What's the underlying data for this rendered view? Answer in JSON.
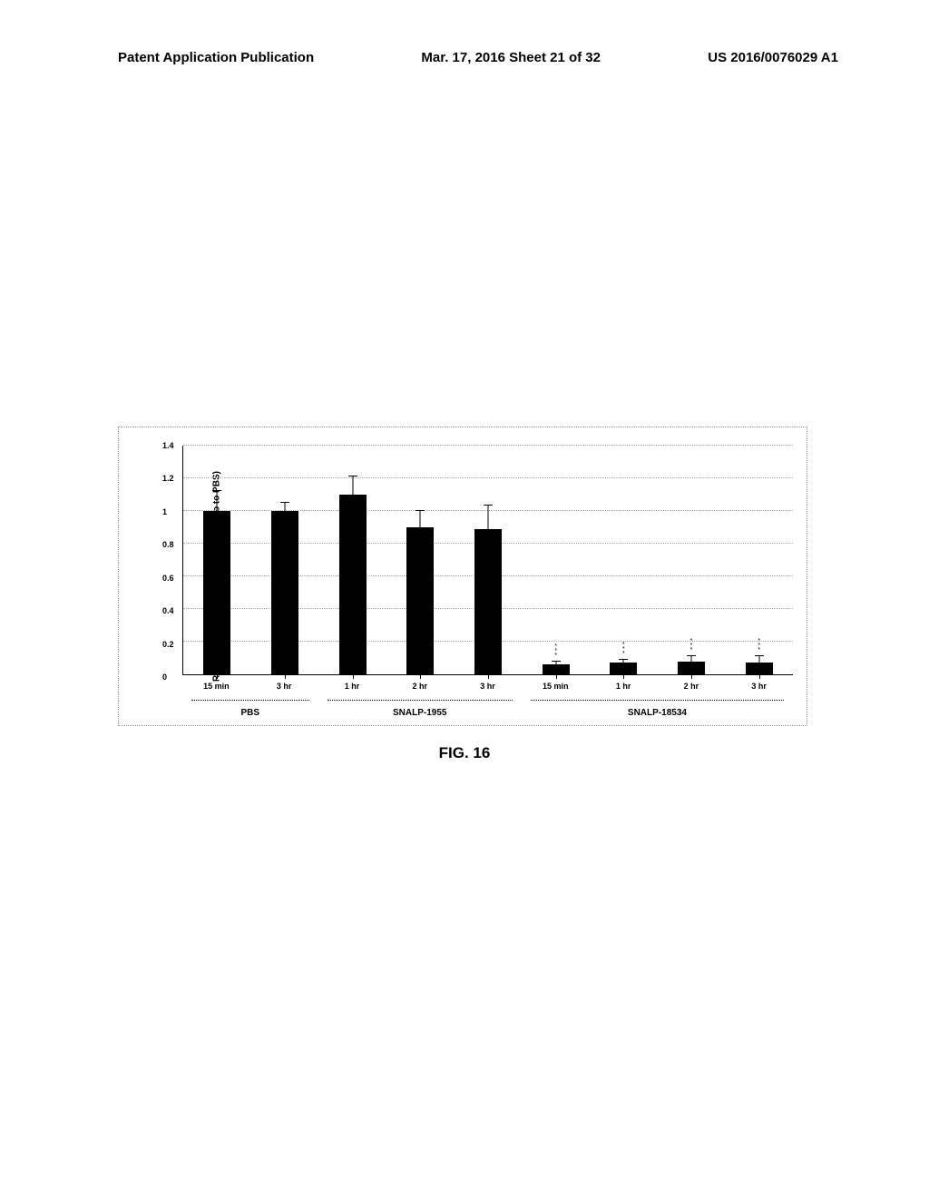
{
  "header": {
    "left": "Patent Application Publication",
    "center": "Mar. 17, 2016  Sheet 21 of 32",
    "right": "US 2016/0076029 A1"
  },
  "figure_caption": "FIG. 16",
  "chart": {
    "type": "bar",
    "y_axis_label": "Realtive TTR mRNA Level (normalized to to PBS)",
    "ylim": [
      0,
      1.4
    ],
    "ytick_step": 0.2,
    "yticks": [
      0,
      0.2,
      0.4,
      0.6,
      0.8,
      1,
      1.2,
      1.4
    ],
    "bar_color": "#000000",
    "grid_color": "#aaaaaa",
    "background_color": "#ffffff",
    "groups": [
      {
        "label": "PBS",
        "start": 0,
        "end": 2
      },
      {
        "label": "SNALP-1955",
        "start": 2,
        "end": 5
      },
      {
        "label": "SNALP-18534",
        "start": 5,
        "end": 9
      }
    ],
    "bars": [
      {
        "x_label": "15 min",
        "value": 1.0,
        "error": 0.12,
        "sig": ""
      },
      {
        "x_label": "3 hr",
        "value": 1.0,
        "error": 0.05,
        "sig": ""
      },
      {
        "x_label": "1 hr",
        "value": 1.1,
        "error": 0.11,
        "sig": ""
      },
      {
        "x_label": "2 hr",
        "value": 0.9,
        "error": 0.1,
        "sig": ""
      },
      {
        "x_label": "3 hr",
        "value": 0.89,
        "error": 0.14,
        "sig": ""
      },
      {
        "x_label": "15 min",
        "value": 0.06,
        "error": 0.02,
        "sig": "***"
      },
      {
        "x_label": "1 hr",
        "value": 0.07,
        "error": 0.02,
        "sig": "***"
      },
      {
        "x_label": "2 hr",
        "value": 0.08,
        "error": 0.03,
        "sig": "***"
      },
      {
        "x_label": "3 hr",
        "value": 0.07,
        "error": 0.04,
        "sig": "***"
      }
    ]
  }
}
